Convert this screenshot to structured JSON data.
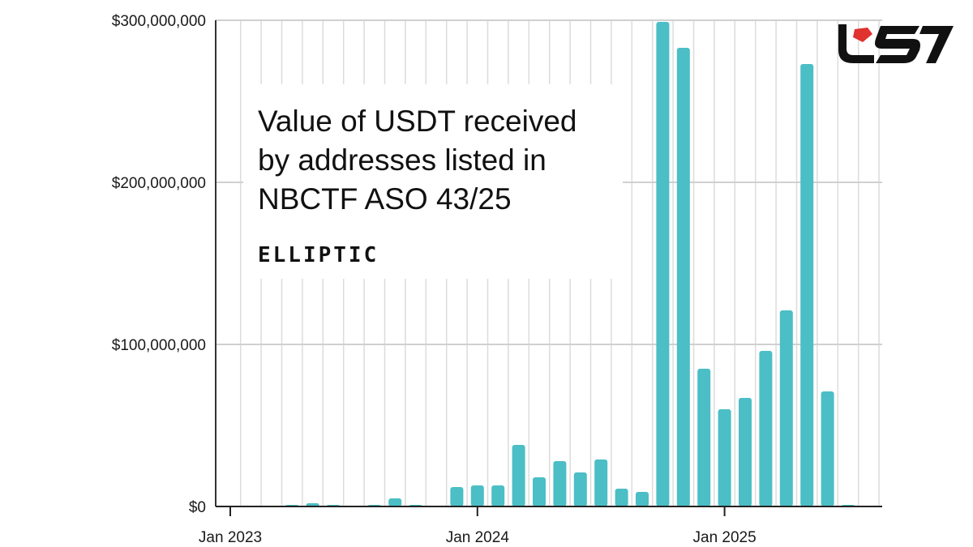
{
  "chart_data": {
    "type": "bar",
    "title": "Value of USDT received by addresses listed in NBCTF ASO 43/25",
    "xlabel": "",
    "ylabel": "",
    "ylim": [
      0,
      300000000
    ],
    "yticks": [
      "$0",
      "$100,000,000",
      "$200,000,000",
      "$300,000,000"
    ],
    "ytick_values": [
      0,
      100000000,
      200000000,
      300000000
    ],
    "xticks": [
      "Jan 2023",
      "Jan 2024",
      "Jan 2025"
    ],
    "xtick_dates": [
      "2023-01",
      "2024-01",
      "2025-01"
    ],
    "grid": true,
    "bar_color": "#4bbec6",
    "series": [
      {
        "x": [
          "2023-01",
          "2023-02",
          "2023-03",
          "2023-04",
          "2023-05",
          "2023-06",
          "2023-07",
          "2023-08",
          "2023-09",
          "2023-10",
          "2023-11",
          "2023-12",
          "2024-01",
          "2024-02",
          "2024-03",
          "2024-04",
          "2024-05",
          "2024-06",
          "2024-07",
          "2024-08",
          "2024-09",
          "2024-10",
          "2024-11",
          "2024-12",
          "2025-01",
          "2025-02",
          "2025-03",
          "2025-04",
          "2025-05",
          "2025-06",
          "2025-07"
        ],
        "values": [
          0,
          0,
          0,
          1000000,
          2000000,
          1000000,
          0,
          1000000,
          5000000,
          1000000,
          0,
          12000000,
          13000000,
          13000000,
          38000000,
          18000000,
          28000000,
          21000000,
          29000000,
          11000000,
          9000000,
          299000000,
          283000000,
          85000000,
          60000000,
          67000000,
          96000000,
          121000000,
          273000000,
          71000000,
          1000000
        ]
      }
    ]
  },
  "brand": {
    "text": "ELLIPTIC",
    "logo_text": "USD",
    "logo_red": "#e0322e",
    "logo_black": "#111111"
  }
}
